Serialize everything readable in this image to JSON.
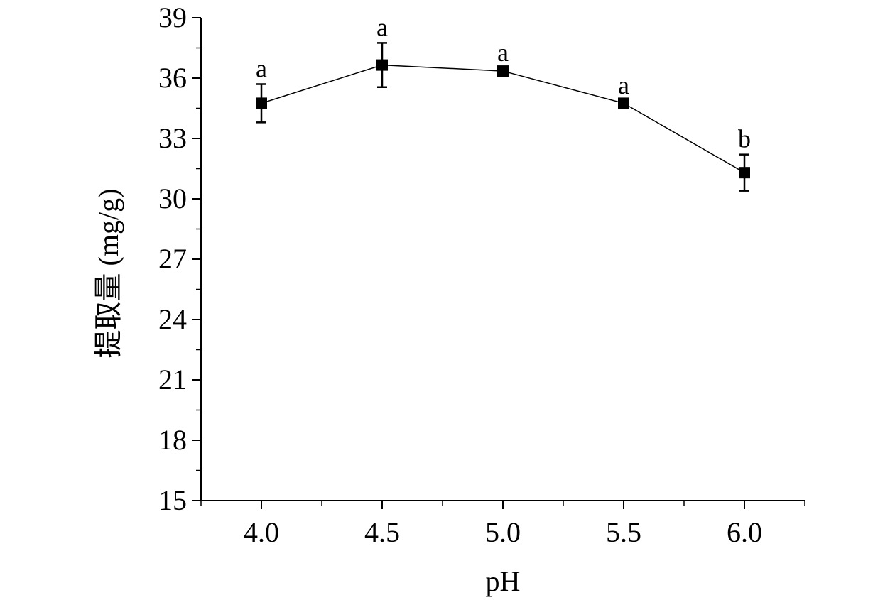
{
  "chart_data": {
    "type": "line",
    "title": "",
    "xlabel": "pH",
    "ylabel": "提取量 (mg/g)",
    "x": [
      4.0,
      4.5,
      5.0,
      5.5,
      6.0
    ],
    "x_tick_labels": [
      "4.0",
      "4.5",
      "5.0",
      "5.5",
      "6.0"
    ],
    "xlim": [
      3.75,
      6.25
    ],
    "ylim": [
      15,
      39
    ],
    "y_ticks": [
      15,
      18,
      21,
      24,
      27,
      30,
      33,
      36,
      39
    ],
    "y_tick_labels": [
      "15",
      "18",
      "21",
      "24",
      "27",
      "30",
      "33",
      "36",
      "39"
    ],
    "grid": false,
    "series": [
      {
        "values": [
          34.75,
          36.65,
          36.35,
          34.75,
          31.3
        ],
        "errors": [
          0.95,
          1.1,
          0.15,
          0.12,
          0.9
        ],
        "significance": [
          "a",
          "a",
          "a",
          "a",
          "b"
        ],
        "marker": "square",
        "color": "#000000"
      }
    ]
  }
}
